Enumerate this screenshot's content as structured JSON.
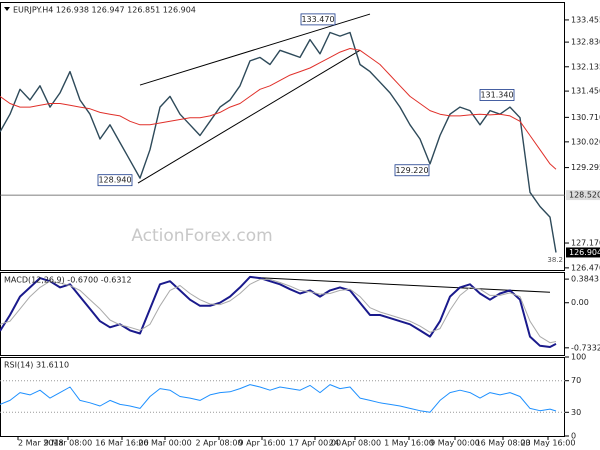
{
  "chart_data": [
    {
      "type": "line",
      "title": "EURJPY.H4 126.938 126.947 126.851 126.904",
      "watermark": "ActionForex.com",
      "x": [
        0,
        2,
        4,
        6,
        8,
        10,
        12,
        14,
        16,
        18,
        20,
        22,
        24,
        26,
        28,
        30,
        32,
        34,
        36,
        38,
        40,
        42,
        44,
        46,
        48,
        50,
        52,
        54,
        56,
        58,
        60,
        62,
        64,
        66,
        68,
        70,
        72,
        74,
        76,
        78,
        80,
        82,
        84,
        86,
        88,
        90,
        92,
        94,
        96,
        98,
        100,
        102,
        104,
        106,
        108,
        110,
        111.2
      ],
      "xlim": [
        0,
        113
      ],
      "ylim": [
        126.41,
        133.96
      ],
      "yticks": [
        133.455,
        {
          "value": 132.83,
          "label": "132.830"
        },
        132.135,
        {
          "value": 131.45,
          "label": "131.450"
        },
        {
          "value": 130.71,
          "label": "130.710"
        },
        {
          "value": 130.02,
          "label": "130.020"
        },
        129.295,
        {
          "value": 127.17,
          "label": "127.170"
        },
        {
          "value": 126.47,
          "label": "126.470"
        }
      ],
      "series": [
        {
          "color": "#2e4a5a",
          "values": [
            130.3,
            130.8,
            131.5,
            131.2,
            131.6,
            131.0,
            131.4,
            132.0,
            131.2,
            130.8,
            130.1,
            130.5,
            130.0,
            129.5,
            129.0,
            129.8,
            131.0,
            131.3,
            130.8,
            130.5,
            130.2,
            130.6,
            131.0,
            131.2,
            131.6,
            132.3,
            132.4,
            132.2,
            132.6,
            132.5,
            132.4,
            132.9,
            132.5,
            133.1,
            133.0,
            133.1,
            132.2,
            132.0,
            131.7,
            131.4,
            131.0,
            130.5,
            130.1,
            129.4,
            130.2,
            130.8,
            131.0,
            130.9,
            130.5,
            130.9,
            130.8,
            131.0,
            130.7,
            128.6,
            128.2,
            127.9,
            126.904
          ]
        },
        {
          "color": "#e0302a",
          "values": [
            131.3,
            131.1,
            131.0,
            131.0,
            131.05,
            131.1,
            131.1,
            131.05,
            131.0,
            130.95,
            130.85,
            130.8,
            130.75,
            130.6,
            130.5,
            130.5,
            130.55,
            130.6,
            130.65,
            130.7,
            130.7,
            130.75,
            130.85,
            131.0,
            131.1,
            131.3,
            131.5,
            131.6,
            131.75,
            131.9,
            132.0,
            132.1,
            132.25,
            132.4,
            132.55,
            132.65,
            132.6,
            132.4,
            132.2,
            131.9,
            131.6,
            131.3,
            131.1,
            130.9,
            130.8,
            130.75,
            130.75,
            130.78,
            130.8,
            130.78,
            130.8,
            130.75,
            130.6,
            130.2,
            129.8,
            129.4,
            129.25
          ]
        }
      ],
      "annotations": [
        {
          "label": "133.470",
          "x": 63.6,
          "y": 133.47
        },
        {
          "label": "128.940",
          "x": 23,
          "y": 128.94
        },
        {
          "label": "131.340",
          "x": 99.4,
          "y": 131.34
        },
        {
          "label": "129.220",
          "x": 82.4,
          "y": 129.22
        }
      ],
      "fib_label": "38.2",
      "level": {
        "value": 128.52,
        "label": "128.520"
      },
      "last_price": {
        "value": 126.904,
        "label": "126.904"
      },
      "trendlines": [
        {
          "x": [
            28,
            74
          ],
          "y": [
            131.62,
            133.62
          ]
        },
        {
          "x": [
            27.6,
            72
          ],
          "y": [
            128.86,
            132.6
          ]
        }
      ]
    },
    {
      "type": "line",
      "title": "MACD(12,26,9) -0.6700 -0.6312",
      "x": [
        0,
        2,
        4,
        6,
        8,
        10,
        12,
        14,
        16,
        18,
        20,
        22,
        24,
        26,
        28,
        30,
        32,
        34,
        36,
        38,
        40,
        42,
        44,
        46,
        48,
        50,
        52,
        54,
        56,
        58,
        60,
        62,
        64,
        66,
        68,
        70,
        72,
        74,
        76,
        78,
        80,
        82,
        84,
        86,
        88,
        90,
        92,
        94,
        96,
        98,
        100,
        102,
        104,
        106,
        108,
        110,
        111.2
      ],
      "xlim": [
        0,
        113
      ],
      "ylim": [
        -0.85,
        0.5
      ],
      "yticks": [
        0.3843,
        {
          "value": 0,
          "label": "0.00"
        },
        -0.7332
      ],
      "series": [
        {
          "color": "#1a1a8c",
          "values": [
            -0.46,
            -0.2,
            0.1,
            0.25,
            0.4,
            0.35,
            0.25,
            0.3,
            0.1,
            -0.1,
            -0.3,
            -0.4,
            -0.35,
            -0.45,
            -0.5,
            -0.1,
            0.3,
            0.35,
            0.2,
            0.05,
            -0.05,
            -0.05,
            0.0,
            0.1,
            0.25,
            0.42,
            0.4,
            0.35,
            0.3,
            0.22,
            0.15,
            0.2,
            0.1,
            0.2,
            0.25,
            0.2,
            0.0,
            -0.2,
            -0.2,
            -0.25,
            -0.3,
            -0.35,
            -0.45,
            -0.55,
            -0.3,
            0.1,
            0.25,
            0.3,
            0.15,
            0.05,
            0.15,
            0.2,
            0.05,
            -0.55,
            -0.7,
            -0.72,
            -0.67
          ]
        },
        {
          "color": "#aaaaaa",
          "values": [
            -0.35,
            -0.3,
            -0.1,
            0.1,
            0.25,
            0.35,
            0.32,
            0.28,
            0.2,
            0.05,
            -0.1,
            -0.28,
            -0.36,
            -0.4,
            -0.45,
            -0.35,
            -0.05,
            0.2,
            0.28,
            0.15,
            0.05,
            -0.02,
            -0.03,
            0.03,
            0.15,
            0.3,
            0.38,
            0.38,
            0.33,
            0.27,
            0.2,
            0.18,
            0.14,
            0.15,
            0.2,
            0.22,
            0.1,
            -0.08,
            -0.15,
            -0.2,
            -0.25,
            -0.3,
            -0.38,
            -0.48,
            -0.42,
            -0.12,
            0.12,
            0.25,
            0.22,
            0.12,
            0.12,
            0.16,
            0.1,
            -0.3,
            -0.55,
            -0.65,
            -0.63
          ]
        }
      ],
      "trendlines": [
        {
          "x": [
            51,
            110
          ],
          "y": [
            0.41,
            0.17
          ]
        }
      ]
    },
    {
      "type": "line",
      "title": "RSI(14) 31.6110",
      "x": [
        0,
        2,
        4,
        6,
        8,
        10,
        12,
        14,
        16,
        18,
        20,
        22,
        24,
        26,
        28,
        30,
        32,
        34,
        36,
        38,
        40,
        42,
        44,
        46,
        48,
        50,
        52,
        54,
        56,
        58,
        60,
        62,
        64,
        66,
        68,
        70,
        72,
        74,
        76,
        78,
        80,
        82,
        84,
        86,
        88,
        90,
        92,
        94,
        96,
        98,
        100,
        102,
        104,
        106,
        108,
        110,
        111.2
      ],
      "xlim": [
        0,
        113
      ],
      "ylim": [
        0,
        100
      ],
      "yticks": [
        100,
        70,
        30,
        0
      ],
      "guides": [
        70,
        30
      ],
      "xticks": [
        {
          "value": 3.6,
          "label": "2 Mar 2018"
        },
        {
          "value": 13.6,
          "label": "9 Mar 08:00"
        },
        {
          "value": 24.4,
          "label": "16 Mar 16:00"
        },
        {
          "value": 33,
          "label": "26 Mar 00:00"
        },
        {
          "value": 43.8,
          "label": "2 Apr 08:00"
        },
        {
          "value": 52.4,
          "label": "9 Apr 16:00"
        },
        {
          "value": 63,
          "label": "17 Apr 00:00"
        },
        {
          "value": 71,
          "label": "24 Apr 08:00"
        },
        {
          "value": 81.8,
          "label": "1 May 16:00"
        },
        {
          "value": 91,
          "label": "9 May 00:00"
        },
        {
          "value": 100.6,
          "label": "16 May 08:00"
        },
        {
          "value": 109.6,
          "label": "23 May 16:00"
        }
      ],
      "series": [
        {
          "color": "#1e90ff",
          "values": [
            40,
            45,
            55,
            52,
            58,
            48,
            55,
            62,
            45,
            42,
            38,
            45,
            40,
            38,
            35,
            50,
            60,
            58,
            50,
            48,
            45,
            52,
            55,
            56,
            60,
            65,
            62,
            58,
            62,
            60,
            58,
            64,
            55,
            65,
            60,
            62,
            48,
            45,
            42,
            40,
            38,
            35,
            32,
            30,
            45,
            55,
            58,
            55,
            48,
            55,
            52,
            55,
            50,
            35,
            32,
            34,
            31.611
          ]
        }
      ]
    }
  ]
}
